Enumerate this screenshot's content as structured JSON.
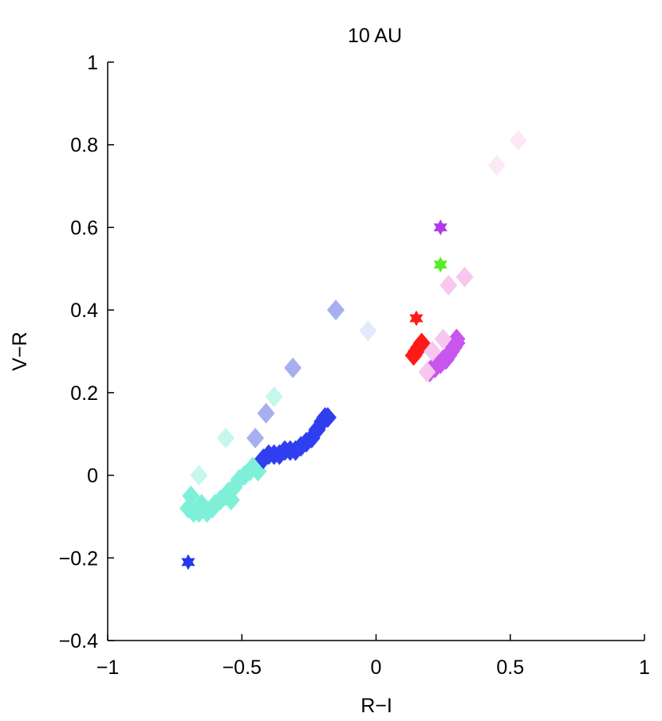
{
  "chart_data": {
    "type": "scatter",
    "title": "10 AU",
    "xlabel": "R−I",
    "ylabel": "V−R",
    "xlim": [
      -1,
      1
    ],
    "ylim": [
      -0.4,
      1
    ],
    "xticks": [
      -1,
      -0.5,
      0,
      0.5,
      1
    ],
    "xtick_labels": [
      "−1",
      "−0.5",
      "0",
      "0.5",
      "1"
    ],
    "yticks": [
      -0.4,
      -0.2,
      0,
      0.2,
      0.4,
      0.6,
      0.8,
      1
    ],
    "ytick_labels": [
      "−0.4",
      "−0.2",
      "0",
      "0.2",
      "0.4",
      "0.6",
      "0.8",
      "1"
    ],
    "grid": false,
    "series": [
      {
        "marker": "diamond",
        "color": "#7ff0d8",
        "points": [
          [
            -0.69,
            -0.05
          ],
          [
            -0.7,
            -0.08
          ],
          [
            -0.68,
            -0.09
          ],
          [
            -0.66,
            -0.09
          ],
          [
            -0.65,
            -0.07
          ],
          [
            -0.63,
            -0.09
          ],
          [
            -0.61,
            -0.08
          ],
          [
            -0.6,
            -0.07
          ],
          [
            -0.58,
            -0.06
          ],
          [
            -0.56,
            -0.05
          ],
          [
            -0.55,
            -0.04
          ],
          [
            -0.54,
            -0.06
          ],
          [
            -0.53,
            -0.03
          ],
          [
            -0.51,
            -0.01
          ],
          [
            -0.49,
            0.0
          ],
          [
            -0.47,
            0.01
          ],
          [
            -0.46,
            0.02
          ],
          [
            -0.44,
            0.01
          ]
        ]
      },
      {
        "marker": "diamond",
        "color": "#c6f7ec",
        "points": [
          [
            -0.66,
            0.0
          ],
          [
            -0.56,
            0.09
          ],
          [
            -0.38,
            0.19
          ]
        ]
      },
      {
        "marker": "diamond",
        "color": "#2f3ff0",
        "points": [
          [
            -0.42,
            0.04
          ],
          [
            -0.4,
            0.05
          ],
          [
            -0.38,
            0.05
          ],
          [
            -0.36,
            0.05
          ],
          [
            -0.34,
            0.06
          ],
          [
            -0.32,
            0.06
          ],
          [
            -0.3,
            0.06
          ],
          [
            -0.28,
            0.07
          ],
          [
            -0.26,
            0.08
          ],
          [
            -0.24,
            0.09
          ],
          [
            -0.22,
            0.11
          ],
          [
            -0.2,
            0.13
          ],
          [
            -0.19,
            0.14
          ],
          [
            -0.18,
            0.14
          ]
        ]
      },
      {
        "marker": "diamond",
        "color": "#a8aff0",
        "points": [
          [
            -0.45,
            0.09
          ],
          [
            -0.41,
            0.15
          ],
          [
            -0.31,
            0.26
          ],
          [
            -0.15,
            0.4
          ]
        ]
      },
      {
        "marker": "diamond",
        "color": "#e6e8fb",
        "points": [
          [
            -0.03,
            0.35
          ]
        ]
      },
      {
        "marker": "diamond",
        "color": "#ff1a1a",
        "points": [
          [
            0.14,
            0.29
          ],
          [
            0.15,
            0.3
          ],
          [
            0.16,
            0.31
          ],
          [
            0.17,
            0.32
          ]
        ]
      },
      {
        "marker": "diamond",
        "color": "#c855ee",
        "points": [
          [
            0.2,
            0.25
          ],
          [
            0.21,
            0.26
          ],
          [
            0.22,
            0.26
          ],
          [
            0.23,
            0.27
          ],
          [
            0.24,
            0.27
          ],
          [
            0.25,
            0.28
          ],
          [
            0.26,
            0.28
          ],
          [
            0.27,
            0.29
          ],
          [
            0.28,
            0.3
          ],
          [
            0.29,
            0.31
          ],
          [
            0.3,
            0.32
          ],
          [
            0.3,
            0.33
          ]
        ]
      },
      {
        "marker": "diamond",
        "color": "#f7c7ee",
        "points": [
          [
            0.19,
            0.25
          ],
          [
            0.21,
            0.3
          ],
          [
            0.25,
            0.33
          ],
          [
            0.27,
            0.46
          ],
          [
            0.33,
            0.48
          ]
        ]
      },
      {
        "marker": "diamond",
        "color": "#fde8f5",
        "points": [
          [
            0.45,
            0.75
          ],
          [
            0.53,
            0.81
          ]
        ]
      },
      {
        "marker": "star",
        "color": "#2038ee",
        "points": [
          [
            -0.7,
            -0.21
          ]
        ]
      },
      {
        "marker": "star",
        "color": "#ff1a1a",
        "points": [
          [
            0.15,
            0.38
          ]
        ]
      },
      {
        "marker": "star",
        "color": "#55ee22",
        "points": [
          [
            0.24,
            0.51
          ]
        ]
      },
      {
        "marker": "star",
        "color": "#b03ae8",
        "points": [
          [
            0.24,
            0.6
          ]
        ]
      }
    ]
  }
}
